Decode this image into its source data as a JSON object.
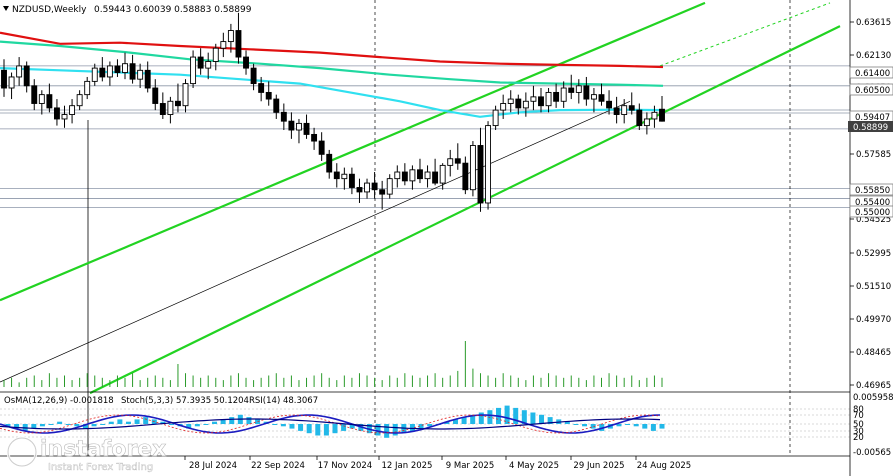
{
  "header": {
    "symbol": "NZDUSD,Weekly",
    "ohlc": "0.59443 0.60039 0.58883 0.58899"
  },
  "indicator_header": {
    "osma": "OsMA(12,26,9) -0.001818",
    "stoch": "Stoch(5,3,3) 57.3935 50.1204",
    "rsi": "RSI(14) 48.3067"
  },
  "watermark": {
    "brand": "instaforex",
    "tagline": "Instant Forex Trading"
  },
  "colors": {
    "bull_candle": "#000000",
    "ma_long": "#e01010",
    "ma_mid": "#20d8a0",
    "ma_short": "#30e0f0",
    "channel": "#22d322",
    "osma_bars": "#22b8e8",
    "stoch_main": "#1c1cc0",
    "stoch_signal": "#e02020",
    "rsi": "#000080"
  },
  "chart_data": {
    "type": "candlestick",
    "timeframe": "Weekly",
    "y_axis_labels": [
      "0.63615",
      "0.62130",
      "0.60650",
      "0.59165",
      "0.57585",
      "0.54525",
      "0.52995",
      "0.51510",
      "0.49970",
      "0.48465",
      "0.46965"
    ],
    "price_tags": [
      {
        "value": "0.61400",
        "style": "box"
      },
      {
        "value": "0.60500",
        "style": "box"
      },
      {
        "value": "0.59407",
        "style": "box"
      },
      {
        "value": "0.58899",
        "style": "dark"
      },
      {
        "value": "0.55850",
        "style": "box"
      },
      {
        "value": "0.55400",
        "style": "box"
      },
      {
        "value": "0.55000",
        "style": "box"
      }
    ],
    "x_labels": [
      "28 Jul 2024",
      "22 Sep 2024",
      "17 Nov 2024",
      "12 Jan 2025",
      "9 Mar 2025",
      "4 May 2025",
      "29 Jun 2025",
      "24 Aug 2025"
    ],
    "ylim": [
      0.4665,
      0.642
    ],
    "last_close": 0.58899,
    "horizontal_levels": [
      0.614,
      0.605,
      0.59407,
      0.5855,
      0.5585,
      0.554,
      0.55
    ],
    "candles": [
      [
        0.612,
        0.617,
        0.6,
        0.604
      ],
      [
        0.604,
        0.611,
        0.599,
        0.609
      ],
      [
        0.609,
        0.618,
        0.605,
        0.614
      ],
      [
        0.614,
        0.616,
        0.602,
        0.605
      ],
      [
        0.605,
        0.608,
        0.594,
        0.597
      ],
      [
        0.597,
        0.603,
        0.592,
        0.601
      ],
      [
        0.601,
        0.606,
        0.593,
        0.595
      ],
      [
        0.595,
        0.599,
        0.587,
        0.59
      ],
      [
        0.59,
        0.596,
        0.586,
        0.592
      ],
      [
        0.592,
        0.599,
        0.588,
        0.596
      ],
      [
        0.596,
        0.603,
        0.594,
        0.601
      ],
      [
        0.601,
        0.609,
        0.599,
        0.607
      ],
      [
        0.607,
        0.615,
        0.605,
        0.613
      ],
      [
        0.613,
        0.618,
        0.607,
        0.609
      ],
      [
        0.609,
        0.616,
        0.605,
        0.614
      ],
      [
        0.614,
        0.617,
        0.609,
        0.611
      ],
      [
        0.611,
        0.62,
        0.608,
        0.615
      ],
      [
        0.615,
        0.619,
        0.606,
        0.608
      ],
      [
        0.608,
        0.615,
        0.604,
        0.612
      ],
      [
        0.612,
        0.616,
        0.602,
        0.604
      ],
      [
        0.604,
        0.608,
        0.594,
        0.597
      ],
      [
        0.597,
        0.602,
        0.59,
        0.592
      ],
      [
        0.592,
        0.6,
        0.588,
        0.598
      ],
      [
        0.598,
        0.606,
        0.593,
        0.596
      ],
      [
        0.596,
        0.608,
        0.593,
        0.606
      ],
      [
        0.606,
        0.621,
        0.604,
        0.618
      ],
      [
        0.618,
        0.622,
        0.61,
        0.613
      ],
      [
        0.613,
        0.62,
        0.608,
        0.616
      ],
      [
        0.616,
        0.624,
        0.612,
        0.622
      ],
      [
        0.622,
        0.629,
        0.618,
        0.625
      ],
      [
        0.625,
        0.633,
        0.62,
        0.63
      ],
      [
        0.63,
        0.638,
        0.615,
        0.618
      ],
      [
        0.618,
        0.621,
        0.61,
        0.613
      ],
      [
        0.613,
        0.615,
        0.603,
        0.606
      ],
      [
        0.606,
        0.609,
        0.598,
        0.602
      ],
      [
        0.602,
        0.607,
        0.596,
        0.599
      ],
      [
        0.599,
        0.601,
        0.59,
        0.593
      ],
      [
        0.593,
        0.597,
        0.585,
        0.589
      ],
      [
        0.589,
        0.593,
        0.581,
        0.585
      ],
      [
        0.585,
        0.59,
        0.579,
        0.588
      ],
      [
        0.588,
        0.592,
        0.581,
        0.583
      ],
      [
        0.583,
        0.586,
        0.576,
        0.58
      ],
      [
        0.58,
        0.584,
        0.571,
        0.574
      ],
      [
        0.574,
        0.576,
        0.563,
        0.566
      ],
      [
        0.566,
        0.57,
        0.559,
        0.563
      ],
      [
        0.563,
        0.568,
        0.558,
        0.565
      ],
      [
        0.565,
        0.568,
        0.556,
        0.559
      ],
      [
        0.559,
        0.563,
        0.552,
        0.557
      ],
      [
        0.557,
        0.563,
        0.554,
        0.561
      ],
      [
        0.561,
        0.566,
        0.554,
        0.558
      ],
      [
        0.558,
        0.562,
        0.549,
        0.556
      ],
      [
        0.556,
        0.565,
        0.554,
        0.563
      ],
      [
        0.563,
        0.569,
        0.559,
        0.566
      ],
      [
        0.566,
        0.57,
        0.56,
        0.562
      ],
      [
        0.562,
        0.569,
        0.558,
        0.567
      ],
      [
        0.567,
        0.572,
        0.561,
        0.563
      ],
      [
        0.563,
        0.569,
        0.559,
        0.566
      ],
      [
        0.566,
        0.572,
        0.56,
        0.561
      ],
      [
        0.561,
        0.57,
        0.558,
        0.569
      ],
      [
        0.569,
        0.576,
        0.564,
        0.572
      ],
      [
        0.572,
        0.579,
        0.567,
        0.57
      ],
      [
        0.57,
        0.573,
        0.556,
        0.558
      ],
      [
        0.558,
        0.58,
        0.555,
        0.578
      ],
      [
        0.578,
        0.586,
        0.548,
        0.552
      ],
      [
        0.552,
        0.589,
        0.549,
        0.587
      ],
      [
        0.587,
        0.596,
        0.585,
        0.594
      ],
      [
        0.594,
        0.601,
        0.59,
        0.597
      ],
      [
        0.597,
        0.603,
        0.593,
        0.599
      ],
      [
        0.599,
        0.601,
        0.592,
        0.595
      ],
      [
        0.595,
        0.602,
        0.591,
        0.598
      ],
      [
        0.598,
        0.605,
        0.594,
        0.6
      ],
      [
        0.6,
        0.604,
        0.593,
        0.596
      ],
      [
        0.596,
        0.604,
        0.593,
        0.602
      ],
      [
        0.602,
        0.606,
        0.595,
        0.598
      ],
      [
        0.598,
        0.607,
        0.595,
        0.604
      ],
      [
        0.604,
        0.61,
        0.599,
        0.602
      ],
      [
        0.602,
        0.608,
        0.597,
        0.605
      ],
      [
        0.605,
        0.609,
        0.596,
        0.599
      ],
      [
        0.599,
        0.604,
        0.593,
        0.601
      ],
      [
        0.601,
        0.606,
        0.596,
        0.598
      ],
      [
        0.598,
        0.603,
        0.592,
        0.595
      ],
      [
        0.595,
        0.6,
        0.588,
        0.592
      ],
      [
        0.592,
        0.599,
        0.588,
        0.596
      ],
      [
        0.596,
        0.602,
        0.592,
        0.594
      ],
      [
        0.594,
        0.597,
        0.585,
        0.587
      ],
      [
        0.587,
        0.593,
        0.583,
        0.59
      ],
      [
        0.59,
        0.596,
        0.586,
        0.593
      ],
      [
        0.5944,
        0.6004,
        0.5888,
        0.589
      ]
    ],
    "ma_long": [
      [
        0,
        0.629
      ],
      [
        60,
        0.624
      ],
      [
        120,
        0.6245
      ],
      [
        180,
        0.623
      ],
      [
        250,
        0.6215
      ],
      [
        320,
        0.62
      ],
      [
        380,
        0.618
      ],
      [
        440,
        0.616
      ],
      [
        500,
        0.615
      ],
      [
        560,
        0.6145
      ],
      [
        620,
        0.614
      ],
      [
        663,
        0.6135
      ]
    ],
    "ma_mid": [
      [
        0,
        0.625
      ],
      [
        60,
        0.623
      ],
      [
        130,
        0.62
      ],
      [
        190,
        0.617
      ],
      [
        260,
        0.615
      ],
      [
        320,
        0.613
      ],
      [
        390,
        0.61
      ],
      [
        450,
        0.608
      ],
      [
        500,
        0.6065
      ],
      [
        560,
        0.606
      ],
      [
        620,
        0.6055
      ],
      [
        663,
        0.605
      ]
    ],
    "ma_short": [
      [
        0,
        0.613
      ],
      [
        60,
        0.612
      ],
      [
        120,
        0.611
      ],
      [
        180,
        0.61
      ],
      [
        240,
        0.608
      ],
      [
        300,
        0.606
      ],
      [
        350,
        0.602
      ],
      [
        400,
        0.598
      ],
      [
        440,
        0.594
      ],
      [
        480,
        0.591
      ],
      [
        520,
        0.593
      ],
      [
        560,
        0.594
      ],
      [
        620,
        0.5942
      ],
      [
        663,
        0.594
      ]
    ],
    "channel_lines": [
      {
        "from": [
          0,
          0.508
        ],
        "to": [
          705,
          0.6425
        ]
      },
      {
        "from": [
          90,
          0.466
        ],
        "to": [
          840,
          0.632
        ]
      }
    ],
    "channel_extension": {
      "from": [
        660,
        0.614
      ],
      "to": [
        830,
        0.6425
      ]
    },
    "trendline": {
      "from": [
        0,
        0.471
      ],
      "to": [
        630,
        0.598
      ]
    },
    "volume": [
      3,
      4,
      2,
      4,
      5,
      3,
      6,
      4,
      5,
      3,
      4,
      6,
      5,
      4,
      3,
      5,
      4,
      6,
      3,
      4,
      5,
      4,
      3,
      10,
      6,
      5,
      4,
      5,
      4,
      3,
      5,
      6,
      4,
      3,
      4,
      5,
      6,
      4,
      5,
      3,
      4,
      5,
      6,
      4,
      3,
      5,
      4,
      6,
      5,
      4,
      3,
      5,
      4,
      6,
      5,
      4,
      5,
      6,
      4,
      5,
      7,
      20,
      8,
      6,
      5,
      4,
      6,
      5,
      4,
      3,
      5,
      4,
      6,
      5,
      4,
      5,
      4,
      3,
      5,
      4,
      6,
      5,
      4,
      5,
      3,
      4,
      5,
      4
    ],
    "osma_bars": [
      -1,
      -2,
      -3,
      -2,
      -1,
      0,
      1,
      0,
      -1,
      -2,
      -1,
      0,
      1,
      2,
      1,
      2,
      3,
      2,
      1,
      0,
      -1,
      -2,
      -1,
      0,
      1,
      2,
      3,
      4,
      3,
      2,
      1,
      0,
      -1,
      -2,
      -3,
      -4,
      -5,
      -5,
      -4,
      -3,
      -2,
      -3,
      -4,
      -5,
      -6,
      -5,
      -4,
      -3,
      -2,
      -1,
      0,
      1,
      2,
      3,
      4,
      5,
      6,
      7,
      8,
      7,
      6,
      5,
      4,
      3,
      2,
      1,
      0,
      -1,
      -2,
      -3,
      -2,
      -1,
      0,
      -1,
      -2,
      -3,
      -2
    ],
    "osma_range": [
      "0.005958",
      "-0.00565"
    ],
    "stoch_levels": [
      "80",
      "70",
      "50",
      "30",
      "20"
    ]
  }
}
